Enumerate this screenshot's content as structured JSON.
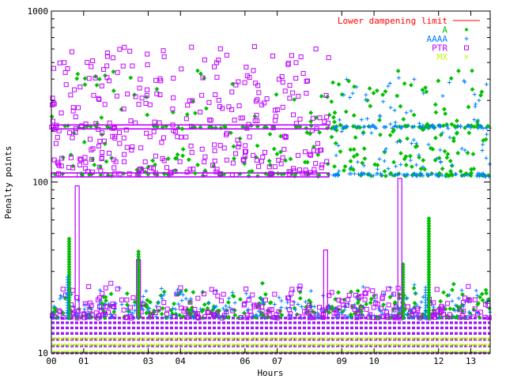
{
  "chart_data": {
    "type": "scatter",
    "title": "",
    "xlabel": "Hours",
    "ylabel": "Penalty points",
    "y_scale": "log",
    "ylim": [
      10,
      1000
    ],
    "xlim": [
      0,
      13.6
    ],
    "y_ticks": [
      {
        "value": 10,
        "label": "10"
      },
      {
        "value": 100,
        "label": "100"
      },
      {
        "value": 1000,
        "label": "1000"
      }
    ],
    "x_ticks": [
      {
        "value": 0,
        "label": "00"
      },
      {
        "value": 1,
        "label": "01"
      },
      {
        "value": 3,
        "label": "03"
      },
      {
        "value": 4,
        "label": "04"
      },
      {
        "value": 6,
        "label": "06"
      },
      {
        "value": 7,
        "label": "07"
      },
      {
        "value": 9,
        "label": "09"
      },
      {
        "value": 10,
        "label": "10"
      },
      {
        "value": 12,
        "label": "12"
      },
      {
        "value": 13,
        "label": "13"
      }
    ],
    "reference_line": {
      "name": "Lower dampening limit",
      "value": 1000,
      "color": "#ff0000"
    },
    "legend": [
      {
        "name": "Lower dampening limit",
        "color": "#ff0000",
        "marker": "line"
      },
      {
        "name": "A",
        "color": "#00c000",
        "marker": "diamond"
      },
      {
        "name": "AAAA",
        "color": "#0080ff",
        "marker": "plus"
      },
      {
        "name": "PTR",
        "color": "#c000ff",
        "marker": "square"
      },
      {
        "name": "MX",
        "color": "#c0ff00",
        "marker": "x"
      }
    ],
    "series": [
      {
        "name": "A",
        "color": "#00c000",
        "baseline_levels": [
          10,
          11,
          12,
          13,
          14,
          15,
          16
        ],
        "band_levels": [
          110,
          210
        ],
        "band_range": [
          0,
          13.6
        ],
        "scatter_range": [
          110,
          450
        ],
        "spikes": [
          {
            "x": 0.55,
            "top": 48
          },
          {
            "x": 2.7,
            "top": 40
          },
          {
            "x": 11.7,
            "top": 62
          },
          {
            "x": 10.9,
            "top": 33
          }
        ]
      },
      {
        "name": "AAAA",
        "color": "#0080ff",
        "baseline_levels": [
          10,
          11,
          12,
          13,
          14,
          15,
          16
        ],
        "band_levels": [
          110,
          210
        ],
        "band_range": [
          8.7,
          13.6
        ],
        "scatter_range": [
          110,
          420
        ],
        "spikes": [
          {
            "x": 0.5,
            "top": 28
          },
          {
            "x": 11.6,
            "top": 25
          }
        ]
      },
      {
        "name": "PTR",
        "color": "#c000ff",
        "baseline_levels": [
          10,
          11,
          12,
          13,
          14,
          15,
          16
        ],
        "band_levels": [
          110,
          210
        ],
        "band_range": [
          0,
          8.6
        ],
        "scatter_range": [
          110,
          620
        ],
        "spikes": [
          {
            "x": 0.8,
            "top": 95
          },
          {
            "x": 2.7,
            "top": 35
          },
          {
            "x": 8.5,
            "top": 40
          },
          {
            "x": 10.8,
            "top": 105
          }
        ]
      },
      {
        "name": "MX",
        "color": "#c0ff00",
        "baseline_levels": [
          10,
          11,
          12
        ],
        "band_levels": [],
        "band_range": [
          0,
          0
        ],
        "scatter_range": [],
        "spikes": []
      }
    ]
  }
}
